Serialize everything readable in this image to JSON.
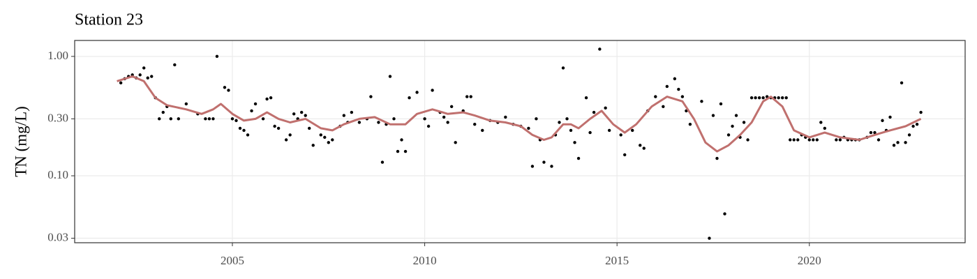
{
  "chart_data": {
    "type": "scatter",
    "title": "Station 23",
    "ylabel": "TN (mg/L)",
    "ylog": true,
    "grid": true,
    "xlim": [
      2000.9,
      2024.05
    ],
    "xticks": [
      2005,
      2010,
      2015,
      2020
    ],
    "ylim": [
      0.0275,
      1.36
    ],
    "yticks": [
      {
        "value": 0.03,
        "label": "0.03"
      },
      {
        "value": 0.1,
        "label": "0.10"
      },
      {
        "value": 0.3,
        "label": "0.30"
      },
      {
        "value": 1,
        "label": "1.00"
      }
    ],
    "points": {
      "color": "#000000",
      "x": [
        2002.1,
        2002.2,
        2002.3,
        2002.4,
        2002.5,
        2002.6,
        2002.7,
        2002.8,
        2002.9,
        2003.0,
        2003.1,
        2003.2,
        2003.3,
        2003.4,
        2003.5,
        2003.6,
        2003.8,
        2004.1,
        2004.3,
        2004.4,
        2004.5,
        2004.6,
        2004.8,
        2004.9,
        2005.0,
        2005.1,
        2005.2,
        2005.3,
        2005.4,
        2005.5,
        2005.6,
        2005.8,
        2005.9,
        2006.0,
        2006.1,
        2006.2,
        2006.4,
        2006.5,
        2006.6,
        2006.7,
        2006.8,
        2006.9,
        2007.0,
        2007.1,
        2007.3,
        2007.4,
        2007.5,
        2007.6,
        2007.8,
        2007.9,
        2008.0,
        2008.1,
        2008.3,
        2008.5,
        2008.6,
        2008.8,
        2008.9,
        2009.0,
        2009.1,
        2009.2,
        2009.3,
        2009.4,
        2009.5,
        2009.6,
        2009.8,
        2010.0,
        2010.1,
        2010.2,
        2010.4,
        2010.5,
        2010.6,
        2010.7,
        2010.8,
        2011.0,
        2011.1,
        2011.2,
        2011.3,
        2011.5,
        2011.7,
        2011.9,
        2012.1,
        2012.3,
        2012.5,
        2012.7,
        2012.8,
        2012.9,
        2013.0,
        2013.1,
        2013.3,
        2013.4,
        2013.5,
        2013.6,
        2013.7,
        2013.8,
        2013.9,
        2014.0,
        2014.2,
        2014.3,
        2014.4,
        2014.55,
        2014.7,
        2014.8,
        2015.1,
        2015.2,
        2015.4,
        2015.6,
        2015.7,
        2015.8,
        2016.0,
        2016.2,
        2016.3,
        2016.5,
        2016.6,
        2016.7,
        2016.8,
        2016.9,
        2017.2,
        2017.4,
        2017.5,
        2017.6,
        2017.7,
        2017.8,
        2017.9,
        2018.0,
        2018.1,
        2018.2,
        2018.3,
        2018.4,
        2018.5,
        2018.6,
        2018.7,
        2018.8,
        2018.9,
        2019.0,
        2019.1,
        2019.2,
        2019.3,
        2019.4,
        2019.5,
        2019.6,
        2019.7,
        2019.8,
        2019.9,
        2020.0,
        2020.1,
        2020.2,
        2020.3,
        2020.4,
        2020.7,
        2020.8,
        2020.9,
        2021.0,
        2021.1,
        2021.2,
        2021.3,
        2021.5,
        2021.6,
        2021.7,
        2021.8,
        2021.9,
        2022.0,
        2022.1,
        2022.2,
        2022.3,
        2022.4,
        2022.5,
        2022.6,
        2022.7,
        2022.8,
        2022.9
      ],
      "values": [
        0.6,
        0.65,
        0.68,
        0.7,
        0.66,
        0.7,
        0.8,
        0.66,
        0.68,
        0.45,
        0.3,
        0.34,
        0.38,
        0.3,
        0.85,
        0.3,
        0.4,
        0.33,
        0.3,
        0.3,
        0.3,
        1.0,
        0.55,
        0.52,
        0.3,
        0.29,
        0.25,
        0.24,
        0.22,
        0.35,
        0.4,
        0.3,
        0.44,
        0.45,
        0.26,
        0.25,
        0.2,
        0.22,
        0.33,
        0.3,
        0.34,
        0.32,
        0.25,
        0.18,
        0.22,
        0.21,
        0.19,
        0.2,
        0.26,
        0.32,
        0.28,
        0.34,
        0.28,
        0.3,
        0.46,
        0.28,
        0.13,
        0.27,
        0.68,
        0.3,
        0.16,
        0.2,
        0.16,
        0.45,
        0.5,
        0.3,
        0.26,
        0.52,
        0.34,
        0.31,
        0.28,
        0.38,
        0.19,
        0.35,
        0.46,
        0.46,
        0.27,
        0.24,
        0.29,
        0.28,
        0.31,
        0.27,
        0.26,
        0.25,
        0.12,
        0.3,
        0.2,
        0.13,
        0.12,
        0.22,
        0.28,
        0.8,
        0.3,
        0.24,
        0.19,
        0.14,
        0.45,
        0.23,
        0.34,
        1.15,
        0.37,
        0.24,
        0.22,
        0.15,
        0.24,
        0.18,
        0.17,
        0.35,
        0.46,
        0.38,
        0.56,
        0.65,
        0.53,
        0.46,
        0.35,
        0.27,
        0.42,
        0.03,
        0.32,
        0.14,
        0.4,
        0.048,
        0.22,
        0.26,
        0.32,
        0.21,
        0.28,
        0.2,
        0.45,
        0.45,
        0.45,
        0.45,
        0.46,
        0.45,
        0.45,
        0.45,
        0.45,
        0.45,
        0.2,
        0.2,
        0.2,
        0.22,
        0.21,
        0.2,
        0.2,
        0.2,
        0.28,
        0.25,
        0.2,
        0.2,
        0.21,
        0.2,
        0.2,
        0.2,
        0.2,
        0.21,
        0.23,
        0.23,
        0.2,
        0.29,
        0.24,
        0.31,
        0.18,
        0.19,
        0.6,
        0.19,
        0.22,
        0.26,
        0.27,
        0.34
      ]
    },
    "smooth": {
      "color": "#c0706e",
      "x": [
        2002.0,
        2002.4,
        2002.7,
        2003.0,
        2003.3,
        2003.8,
        2004.2,
        2004.5,
        2004.7,
        2005.0,
        2005.3,
        2005.6,
        2005.9,
        2006.2,
        2006.5,
        2006.9,
        2007.3,
        2007.6,
        2007.9,
        2008.3,
        2008.7,
        2009.1,
        2009.5,
        2009.8,
        2010.2,
        2010.6,
        2011.0,
        2011.3,
        2011.7,
        2012.1,
        2012.5,
        2012.8,
        2013.1,
        2013.3,
        2013.6,
        2013.8,
        2014.0,
        2014.3,
        2014.6,
        2014.9,
        2015.2,
        2015.5,
        2015.9,
        2016.3,
        2016.7,
        2017.0,
        2017.3,
        2017.6,
        2017.9,
        2018.2,
        2018.5,
        2018.8,
        2019.0,
        2019.3,
        2019.6,
        2020.0,
        2020.4,
        2020.8,
        2021.3,
        2021.7,
        2022.1,
        2022.5,
        2022.9
      ],
      "values": [
        0.62,
        0.68,
        0.62,
        0.45,
        0.39,
        0.36,
        0.33,
        0.36,
        0.4,
        0.33,
        0.29,
        0.3,
        0.34,
        0.3,
        0.28,
        0.3,
        0.25,
        0.24,
        0.27,
        0.3,
        0.31,
        0.27,
        0.27,
        0.33,
        0.36,
        0.33,
        0.34,
        0.32,
        0.29,
        0.28,
        0.26,
        0.22,
        0.2,
        0.21,
        0.27,
        0.27,
        0.25,
        0.3,
        0.35,
        0.27,
        0.23,
        0.27,
        0.38,
        0.46,
        0.42,
        0.3,
        0.19,
        0.16,
        0.18,
        0.22,
        0.28,
        0.42,
        0.46,
        0.38,
        0.24,
        0.21,
        0.23,
        0.21,
        0.2,
        0.22,
        0.24,
        0.26,
        0.3
      ]
    }
  }
}
